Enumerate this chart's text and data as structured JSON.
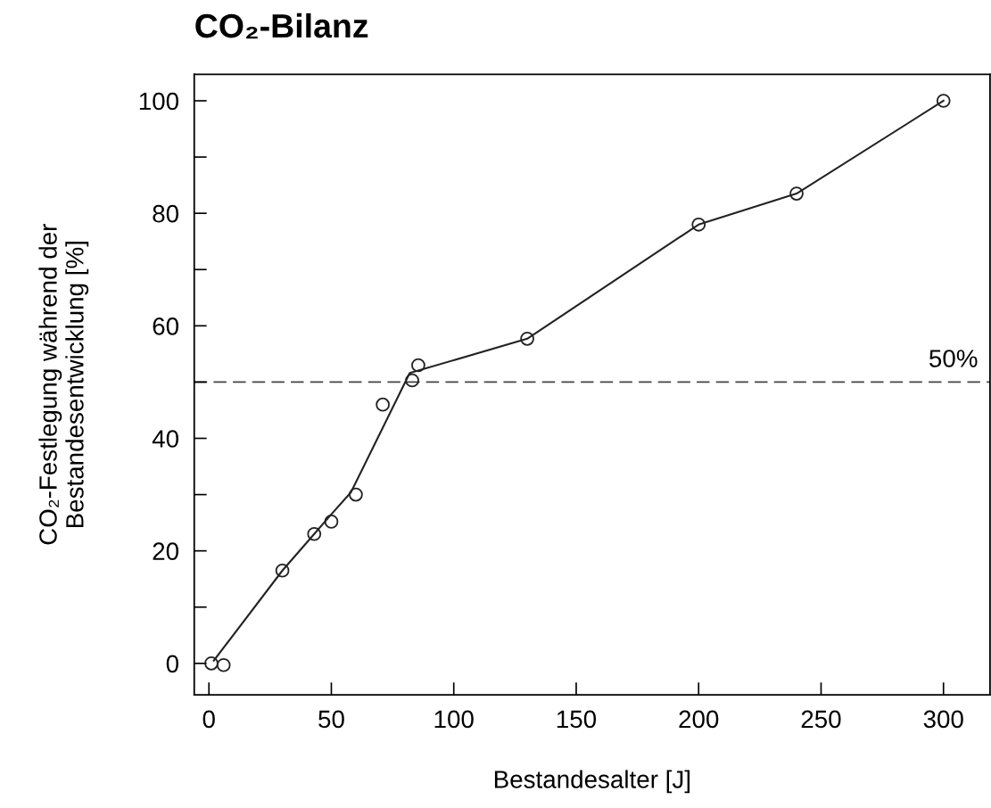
{
  "chart_data": {
    "type": "scatter",
    "title": "CO₂-Bilanz",
    "xlabel": "Bestandesalter [J]",
    "ylabel": "CO₂-Festlegung während der\nBestandesentwicklung [%]",
    "series": [
      {
        "color": "#222222",
        "marker": "circle",
        "x": [
          1,
          6,
          30,
          43,
          50,
          60,
          71,
          83,
          85.5,
          130,
          200,
          240,
          300
        ],
        "values": [
          0,
          -0.3,
          16.5,
          23,
          25.2,
          30,
          46,
          50.3,
          53,
          57.7,
          78,
          83.5,
          100
        ]
      },
      {
        "type": "line",
        "color": "#222222",
        "line_style": "solid",
        "x": [
          2,
          30,
          43,
          50,
          58,
          82,
          130,
          200,
          240,
          300
        ],
        "values": [
          0.5,
          16.5,
          23,
          26.5,
          30.4,
          51.6,
          57.7,
          78,
          83.5,
          100
        ]
      }
    ],
    "xlim": [
      -6,
      319
    ],
    "xticks": [
      0,
      50,
      100,
      150,
      200,
      250,
      300
    ],
    "ylim": [
      -5.6,
      104.7
    ],
    "yticks": [
      0,
      {
        "value": 10,
        "label": null
      },
      20,
      {
        "value": 30,
        "label": null
      },
      40,
      {
        "value": 50,
        "label": null
      },
      60,
      {
        "value": 70,
        "label": null
      },
      80,
      {
        "value": 90,
        "label": null
      },
      100
    ],
    "ref_lines": [
      {
        "axis": "y",
        "value": 50,
        "label": "50%",
        "color": "#444444",
        "line_style": "dashed"
      }
    ],
    "grid": false,
    "legend": false
  }
}
